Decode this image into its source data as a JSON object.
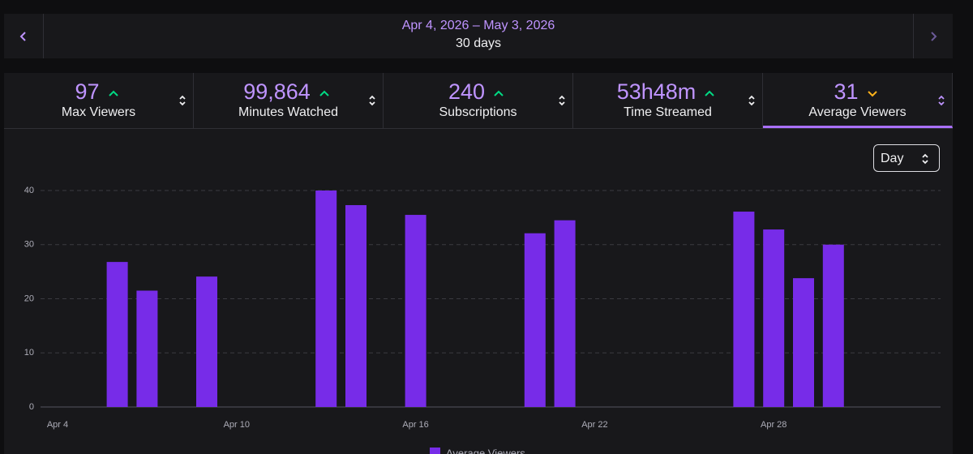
{
  "header": {
    "date_range": "Apr 4, 2026 – May 3, 2026",
    "duration": "30 days"
  },
  "stats": [
    {
      "value": "97",
      "label": "Max Viewers",
      "trend": "up"
    },
    {
      "value": "99,864",
      "label": "Minutes Watched",
      "trend": "up"
    },
    {
      "value": "240",
      "label": "Subscriptions",
      "trend": "up"
    },
    {
      "value": "53h48m",
      "label": "Time Streamed",
      "trend": "up"
    },
    {
      "value": "31",
      "label": "Average Viewers",
      "trend": "down",
      "active": true
    }
  ],
  "controls": {
    "interval": "Day"
  },
  "chart_data": {
    "type": "bar",
    "categories": [
      "Apr 4",
      null,
      null,
      null,
      null,
      null,
      "Apr 10",
      null,
      null,
      null,
      null,
      null,
      "Apr 16",
      null,
      null,
      null,
      null,
      null,
      "Apr 22",
      null,
      null,
      null,
      null,
      null,
      "Apr 28",
      null,
      null,
      null,
      null,
      null
    ],
    "series": [
      {
        "name": "Average Viewers",
        "color": "#772ce8",
        "values": [
          null,
          null,
          26.8,
          21.5,
          null,
          24.1,
          null,
          null,
          null,
          40,
          37.3,
          null,
          35.5,
          null,
          null,
          null,
          32.1,
          34.5,
          null,
          null,
          null,
          null,
          null,
          36.1,
          32.8,
          23.8,
          30,
          null,
          null,
          null
        ]
      }
    ],
    "ylim": [
      0,
      40
    ],
    "yticks": [
      0,
      10,
      20,
      30,
      40
    ],
    "grid": true
  }
}
